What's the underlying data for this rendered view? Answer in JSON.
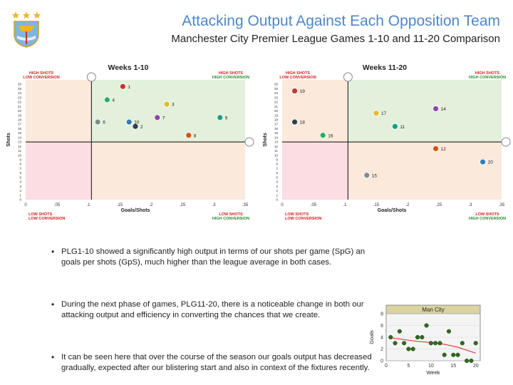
{
  "header": {
    "title": "Attacking Output Against Each Opposition Team",
    "subtitle": "Manchester City Premier League Games 1-10 and 11-20 Comparison"
  },
  "colors": {
    "title_blue": "#4f86c6",
    "hs_hc": "#e3f1dc",
    "hs_lc": "#fbe9dc",
    "ls_hc": "#fbe9dc",
    "ls_lc": "#fbdde3",
    "high_label": "#d42020",
    "conv_label": "#2a8a2a",
    "trend_red": "#e04040",
    "point_green": "#2f6b1c"
  },
  "bullets": [
    "PLG1-10 showed a significantly high output in terms of our shots per game (SpG) an goals per shots (GpS), much higher than the league average in both cases.",
    "During the next phase of games, PLG11-20, there is a noticeable change in both our attacking output and efficiency in converting the chances that we create.",
    "It can be seen here that over the course of the season our goals output has decreased gradually, expected after our blistering start and also in context of the fixtures recently."
  ],
  "quadrant_labels": {
    "high": "HIGH SHOTS",
    "low": "LOW SHOTS",
    "high_conv": "HIGH CONVERSION",
    "low_conv": "LOW CONVERSION"
  },
  "chart_data": [
    {
      "type": "scatter",
      "title": "Weeks 1-10",
      "xlabel": "Goals/Shots",
      "ylabel": "Shots",
      "xlim": [
        0,
        0.35
      ],
      "ylim": [
        0,
        27
      ],
      "xticks": [
        "0",
        ".05",
        ".1",
        ".15",
        ".2",
        ".25",
        ".3",
        ".35"
      ],
      "yticks": [
        "0",
        "1",
        "2",
        "3",
        "4",
        "5",
        "6",
        "7",
        "8",
        "9",
        "10",
        "11",
        "12",
        "13",
        "14",
        "15",
        "16",
        "17",
        "18",
        "19",
        "20",
        "21",
        "22",
        "23",
        "24",
        "25",
        "26"
      ],
      "avg_x": 0.105,
      "avg_y": 13,
      "points": [
        {
          "label": "1",
          "x": 0.155,
          "y": 25.5
        },
        {
          "label": "2",
          "x": 0.175,
          "y": 16.5
        },
        {
          "label": "3",
          "x": 0.225,
          "y": 21.5
        },
        {
          "label": "4",
          "x": 0.13,
          "y": 22.5
        },
        {
          "label": "6",
          "x": 0.115,
          "y": 17.5
        },
        {
          "label": "7",
          "x": 0.21,
          "y": 18.5
        },
        {
          "label": "8",
          "x": 0.26,
          "y": 14.5
        },
        {
          "label": "9",
          "x": 0.31,
          "y": 18.5
        },
        {
          "label": "10",
          "x": 0.165,
          "y": 17.5
        }
      ]
    },
    {
      "type": "scatter",
      "title": "Weeks 11-20",
      "xlabel": "Goals/Shots",
      "ylabel": "Shots",
      "xlim": [
        0,
        0.35
      ],
      "ylim": [
        0,
        27
      ],
      "xticks": [
        "0",
        ".05",
        ".1",
        ".15",
        ".2",
        ".25",
        ".3",
        ".35"
      ],
      "yticks": [
        "0",
        "1",
        "2",
        "3",
        "4",
        "5",
        "6",
        "7",
        "8",
        "9",
        "10",
        "11",
        "12",
        "13",
        "14",
        "15",
        "16",
        "17",
        "18",
        "19",
        "20",
        "21",
        "22",
        "23",
        "24",
        "25",
        "26"
      ],
      "avg_x": 0.105,
      "avg_y": 13,
      "points": [
        {
          "label": "19",
          "x": 0.02,
          "y": 24.5
        },
        {
          "label": "18",
          "x": 0.02,
          "y": 17.5
        },
        {
          "label": "17",
          "x": 0.15,
          "y": 19.5
        },
        {
          "label": "16",
          "x": 0.065,
          "y": 14.5
        },
        {
          "label": "15",
          "x": 0.135,
          "y": 5.5
        },
        {
          "label": "14",
          "x": 0.245,
          "y": 20.5
        },
        {
          "label": "12",
          "x": 0.245,
          "y": 11.5
        },
        {
          "label": "11",
          "x": 0.18,
          "y": 16.5
        },
        {
          "label": "20",
          "x": 0.32,
          "y": 8.5
        }
      ]
    },
    {
      "type": "scatter",
      "title": "Man City",
      "xlabel": "Week",
      "ylabel": "Goals",
      "xlim": [
        0,
        21
      ],
      "ylim": [
        0,
        8
      ],
      "xticks": [
        "0",
        "5",
        "10",
        "15",
        "20"
      ],
      "yticks": [
        "0",
        "2",
        "4",
        "6",
        "8"
      ],
      "points": [
        {
          "x": 1,
          "y": 4
        },
        {
          "x": 2,
          "y": 3
        },
        {
          "x": 3,
          "y": 5
        },
        {
          "x": 4,
          "y": 3
        },
        {
          "x": 5,
          "y": 2
        },
        {
          "x": 6,
          "y": 2
        },
        {
          "x": 7,
          "y": 4
        },
        {
          "x": 8,
          "y": 4
        },
        {
          "x": 9,
          "y": 6
        },
        {
          "x": 10,
          "y": 3
        },
        {
          "x": 11,
          "y": 3
        },
        {
          "x": 12,
          "y": 3
        },
        {
          "x": 13,
          "y": 1
        },
        {
          "x": 14,
          "y": 5
        },
        {
          "x": 15,
          "y": 1
        },
        {
          "x": 16,
          "y": 1
        },
        {
          "x": 17,
          "y": 3
        },
        {
          "x": 18,
          "y": 0
        },
        {
          "x": 19,
          "y": 0
        },
        {
          "x": 20,
          "y": 3
        }
      ],
      "trend": [
        {
          "x": 1,
          "y": 3.9
        },
        {
          "x": 4,
          "y": 3.6
        },
        {
          "x": 7,
          "y": 3.3
        },
        {
          "x": 10,
          "y": 3.1
        },
        {
          "x": 13,
          "y": 2.8
        },
        {
          "x": 16,
          "y": 2.3
        },
        {
          "x": 18,
          "y": 1.8
        },
        {
          "x": 20,
          "y": 1.3
        }
      ]
    }
  ]
}
